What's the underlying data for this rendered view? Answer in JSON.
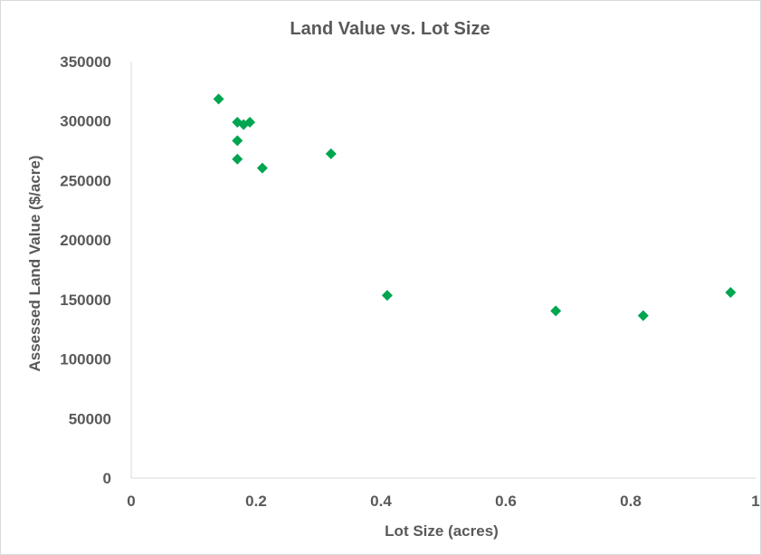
{
  "chart_data": {
    "type": "scatter",
    "title": "Land Value vs. Lot Size",
    "xlabel": "Lot Size (acres)",
    "ylabel": "Assessed Land Value ($/acre)",
    "xlim": [
      0,
      1
    ],
    "ylim": [
      0,
      350000
    ],
    "x_ticks": [
      0,
      0.2,
      0.4,
      0.6,
      0.8,
      1
    ],
    "x_tick_labels": [
      "0",
      "0.2",
      "0.4",
      "0.6",
      "0.8",
      "1"
    ],
    "y_ticks": [
      0,
      50000,
      100000,
      150000,
      200000,
      250000,
      300000,
      350000
    ],
    "y_tick_labels": [
      "0",
      "50000",
      "100000",
      "150000",
      "200000",
      "250000",
      "300000",
      "350000"
    ],
    "grid": false,
    "marker": "diamond",
    "color": "#00a550",
    "points": [
      {
        "x": 0.14,
        "y": 318500
      },
      {
        "x": 0.17,
        "y": 299000
      },
      {
        "x": 0.18,
        "y": 297000
      },
      {
        "x": 0.19,
        "y": 299000
      },
      {
        "x": 0.17,
        "y": 283500
      },
      {
        "x": 0.17,
        "y": 268000
      },
      {
        "x": 0.21,
        "y": 260500
      },
      {
        "x": 0.32,
        "y": 272500
      },
      {
        "x": 0.41,
        "y": 153500
      },
      {
        "x": 0.68,
        "y": 140500
      },
      {
        "x": 0.82,
        "y": 136500
      },
      {
        "x": 0.96,
        "y": 156000
      }
    ]
  }
}
